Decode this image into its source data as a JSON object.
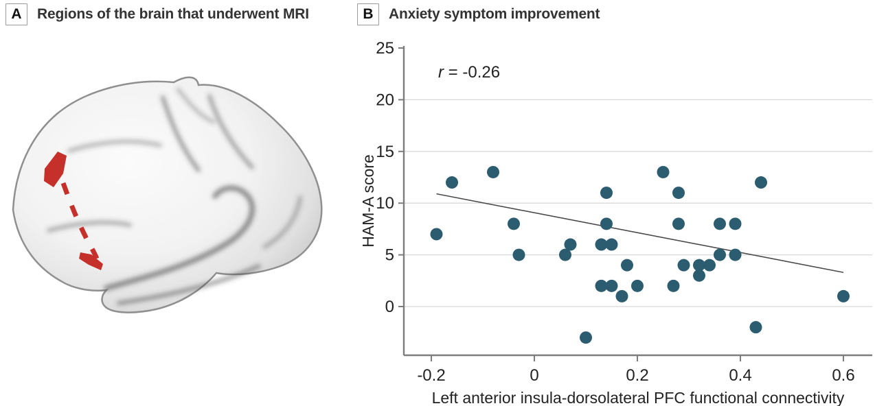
{
  "panels": {
    "a": {
      "label": "A",
      "title": "Regions of the brain that underwent MRI"
    },
    "b": {
      "label": "B",
      "title": "Anxiety symptom improvement"
    }
  },
  "colors": {
    "point": "#2b5c70",
    "trend_line": "#4a4a4a",
    "grid": "#d8d8d8",
    "axis": "#7d7d7d",
    "text": "#222222",
    "highlight_red": "#c5302b",
    "panel_box_border": "#9a9a9a"
  },
  "chart_data": {
    "type": "scatter",
    "title": "Anxiety symptom improvement",
    "xlabel": "Left anterior insula-dorsolateral PFC functional connectivity",
    "ylabel": "HAM-A score",
    "annotation": "r = -0.26",
    "r": -0.26,
    "xlim": [
      -0.25,
      0.66
    ],
    "ylim": [
      -4.7,
      25
    ],
    "x_ticks": [
      -0.2,
      0,
      0.2,
      0.4,
      0.6
    ],
    "y_ticks": [
      25,
      20,
      15,
      10,
      5,
      0
    ],
    "gridline_values": [
      20,
      15,
      10,
      5,
      0
    ],
    "grid": true,
    "legend": false,
    "points": [
      [
        -0.19,
        7
      ],
      [
        -0.16,
        12
      ],
      [
        -0.08,
        13
      ],
      [
        -0.04,
        8
      ],
      [
        -0.03,
        5
      ],
      [
        0.06,
        5
      ],
      [
        0.07,
        6
      ],
      [
        0.1,
        -3
      ],
      [
        0.13,
        6
      ],
      [
        0.13,
        2
      ],
      [
        0.14,
        11
      ],
      [
        0.14,
        8
      ],
      [
        0.15,
        6
      ],
      [
        0.15,
        2
      ],
      [
        0.17,
        1
      ],
      [
        0.18,
        4
      ],
      [
        0.2,
        2
      ],
      [
        0.25,
        13
      ],
      [
        0.27,
        2
      ],
      [
        0.28,
        11
      ],
      [
        0.28,
        8
      ],
      [
        0.29,
        4
      ],
      [
        0.32,
        3
      ],
      [
        0.32,
        4
      ],
      [
        0.34,
        4
      ],
      [
        0.36,
        8
      ],
      [
        0.39,
        8
      ],
      [
        0.36,
        5
      ],
      [
        0.39,
        5
      ],
      [
        0.43,
        -2
      ],
      [
        0.44,
        12
      ],
      [
        0.6,
        1
      ]
    ],
    "trend_line": {
      "x1": -0.19,
      "y1": 10.9,
      "x2": 0.6,
      "y2": 3.3
    }
  }
}
